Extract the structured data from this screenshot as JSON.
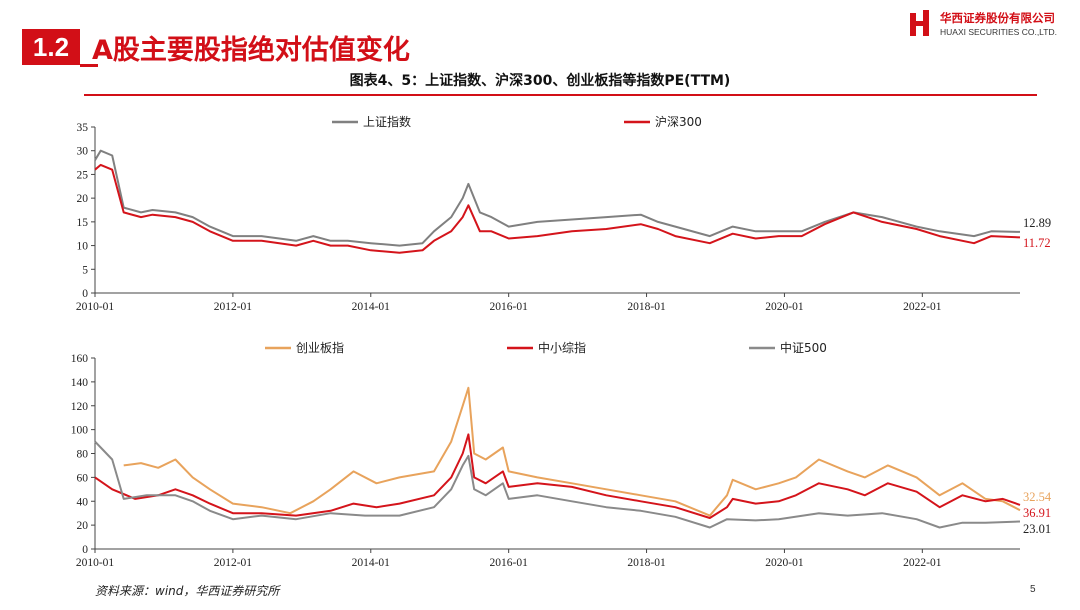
{
  "header": {
    "section_number": "1.2",
    "title": "A股主要股指绝对估值变化",
    "logo_cn": "华西证券股份有限公司",
    "logo_en": "HUAXI SECURITIES CO.,LTD."
  },
  "figure_title": "图表4、5：上证指数、沪深300、创业板指等指数PE(TTM)",
  "source": "资料来源：wind，华西证券研究所",
  "page_number": "5",
  "chart_data": [
    {
      "type": "line",
      "x_ticks": [
        "2010-01",
        "2012-01",
        "2014-01",
        "2016-01",
        "2018-01",
        "2020-01",
        "2022-01"
      ],
      "y_ticks": [
        0,
        5,
        10,
        15,
        20,
        25,
        30,
        35
      ],
      "xlim": [
        "2010-01",
        "2023-06"
      ],
      "ylim": [
        0,
        35
      ],
      "legend_position": "top",
      "series": [
        {
          "name": "上证指数",
          "color": "#808080",
          "end_label": "12.89",
          "points": [
            [
              "2010-01",
              28
            ],
            [
              "2010-02",
              30
            ],
            [
              "2010-04",
              29
            ],
            [
              "2010-06",
              18
            ],
            [
              "2010-09",
              17
            ],
            [
              "2010-11",
              17.5
            ],
            [
              "2011-03",
              17
            ],
            [
              "2011-06",
              16
            ],
            [
              "2011-09",
              14
            ],
            [
              "2012-01",
              12
            ],
            [
              "2012-06",
              12
            ],
            [
              "2012-12",
              11
            ],
            [
              "2013-03",
              12
            ],
            [
              "2013-06",
              11
            ],
            [
              "2013-09",
              11
            ],
            [
              "2014-01",
              10.5
            ],
            [
              "2014-06",
              10
            ],
            [
              "2014-10",
              10.5
            ],
            [
              "2014-12",
              13
            ],
            [
              "2015-03",
              16
            ],
            [
              "2015-05",
              20
            ],
            [
              "2015-06",
              23
            ],
            [
              "2015-08",
              17
            ],
            [
              "2015-10",
              16
            ],
            [
              "2016-01",
              14
            ],
            [
              "2016-06",
              15
            ],
            [
              "2016-12",
              15.5
            ],
            [
              "2017-06",
              16
            ],
            [
              "2017-12",
              16.5
            ],
            [
              "2018-03",
              15
            ],
            [
              "2018-06",
              14
            ],
            [
              "2018-12",
              12
            ],
            [
              "2019-04",
              14
            ],
            [
              "2019-08",
              13
            ],
            [
              "2019-12",
              13
            ],
            [
              "2020-04",
              13
            ],
            [
              "2020-08",
              15
            ],
            [
              "2021-01",
              17
            ],
            [
              "2021-06",
              16
            ],
            [
              "2021-12",
              14
            ],
            [
              "2022-04",
              13
            ],
            [
              "2022-10",
              12
            ],
            [
              "2023-01",
              13
            ],
            [
              "2023-06",
              12.89
            ]
          ]
        },
        {
          "name": "沪深300",
          "color": "#d4141b",
          "end_label": "11.72",
          "points": [
            [
              "2010-01",
              26
            ],
            [
              "2010-02",
              27
            ],
            [
              "2010-04",
              26
            ],
            [
              "2010-06",
              17
            ],
            [
              "2010-09",
              16
            ],
            [
              "2010-11",
              16.5
            ],
            [
              "2011-03",
              16
            ],
            [
              "2011-06",
              15
            ],
            [
              "2011-09",
              13
            ],
            [
              "2012-01",
              11
            ],
            [
              "2012-06",
              11
            ],
            [
              "2012-12",
              10
            ],
            [
              "2013-03",
              11
            ],
            [
              "2013-06",
              10
            ],
            [
              "2013-09",
              10
            ],
            [
              "2014-01",
              9
            ],
            [
              "2014-06",
              8.5
            ],
            [
              "2014-10",
              9
            ],
            [
              "2014-12",
              11
            ],
            [
              "2015-03",
              13
            ],
            [
              "2015-05",
              16
            ],
            [
              "2015-06",
              18.5
            ],
            [
              "2015-08",
              13
            ],
            [
              "2015-10",
              13
            ],
            [
              "2016-01",
              11.5
            ],
            [
              "2016-06",
              12
            ],
            [
              "2016-12",
              13
            ],
            [
              "2017-06",
              13.5
            ],
            [
              "2017-12",
              14.5
            ],
            [
              "2018-03",
              13.5
            ],
            [
              "2018-06",
              12
            ],
            [
              "2018-12",
              10.5
            ],
            [
              "2019-04",
              12.5
            ],
            [
              "2019-08",
              11.5
            ],
            [
              "2019-12",
              12
            ],
            [
              "2020-04",
              12
            ],
            [
              "2020-08",
              14.5
            ],
            [
              "2021-01",
              17
            ],
            [
              "2021-06",
              15
            ],
            [
              "2021-12",
              13.5
            ],
            [
              "2022-04",
              12
            ],
            [
              "2022-10",
              10.5
            ],
            [
              "2023-01",
              12
            ],
            [
              "2023-06",
              11.72
            ]
          ]
        }
      ]
    },
    {
      "type": "line",
      "x_ticks": [
        "2010-01",
        "2012-01",
        "2014-01",
        "2016-01",
        "2018-01",
        "2020-01",
        "2022-01"
      ],
      "y_ticks": [
        0,
        20,
        40,
        60,
        80,
        100,
        120,
        140,
        160
      ],
      "xlim": [
        "2010-01",
        "2023-06"
      ],
      "ylim": [
        0,
        160
      ],
      "legend_position": "top",
      "series": [
        {
          "name": "创业板指",
          "color": "#e8a35c",
          "end_label": "32.54",
          "points": [
            [
              "2010-06",
              70
            ],
            [
              "2010-09",
              72
            ],
            [
              "2010-12",
              68
            ],
            [
              "2011-03",
              75
            ],
            [
              "2011-06",
              60
            ],
            [
              "2011-09",
              50
            ],
            [
              "2012-01",
              38
            ],
            [
              "2012-06",
              35
            ],
            [
              "2012-11",
              30
            ],
            [
              "2013-03",
              40
            ],
            [
              "2013-06",
              50
            ],
            [
              "2013-10",
              65
            ],
            [
              "2014-02",
              55
            ],
            [
              "2014-06",
              60
            ],
            [
              "2014-12",
              65
            ],
            [
              "2015-03",
              90
            ],
            [
              "2015-05",
              120
            ],
            [
              "2015-06",
              135
            ],
            [
              "2015-07",
              80
            ],
            [
              "2015-09",
              75
            ],
            [
              "2015-12",
              85
            ],
            [
              "2016-01",
              65
            ],
            [
              "2016-06",
              60
            ],
            [
              "2016-12",
              55
            ],
            [
              "2017-06",
              50
            ],
            [
              "2017-12",
              45
            ],
            [
              "2018-06",
              40
            ],
            [
              "2018-12",
              28
            ],
            [
              "2019-03",
              45
            ],
            [
              "2019-04",
              58
            ],
            [
              "2019-08",
              50
            ],
            [
              "2019-12",
              55
            ],
            [
              "2020-03",
              60
            ],
            [
              "2020-07",
              75
            ],
            [
              "2020-12",
              65
            ],
            [
              "2021-03",
              60
            ],
            [
              "2021-07",
              70
            ],
            [
              "2021-12",
              60
            ],
            [
              "2022-04",
              45
            ],
            [
              "2022-08",
              55
            ],
            [
              "2022-12",
              42
            ],
            [
              "2023-03",
              40
            ],
            [
              "2023-06",
              32.54
            ]
          ]
        },
        {
          "name": "中小综指",
          "color": "#d4141b",
          "end_label": "36.91",
          "points": [
            [
              "2010-01",
              60
            ],
            [
              "2010-04",
              50
            ],
            [
              "2010-08",
              42
            ],
            [
              "2010-12",
              45
            ],
            [
              "2011-03",
              50
            ],
            [
              "2011-06",
              45
            ],
            [
              "2011-09",
              38
            ],
            [
              "2012-01",
              30
            ],
            [
              "2012-06",
              30
            ],
            [
              "2012-12",
              28
            ],
            [
              "2013-06",
              32
            ],
            [
              "2013-10",
              38
            ],
            [
              "2014-02",
              35
            ],
            [
              "2014-06",
              38
            ],
            [
              "2014-12",
              45
            ],
            [
              "2015-03",
              60
            ],
            [
              "2015-05",
              80
            ],
            [
              "2015-06",
              96
            ],
            [
              "2015-07",
              60
            ],
            [
              "2015-09",
              55
            ],
            [
              "2015-12",
              65
            ],
            [
              "2016-01",
              52
            ],
            [
              "2016-06",
              55
            ],
            [
              "2016-12",
              52
            ],
            [
              "2017-06",
              45
            ],
            [
              "2017-12",
              40
            ],
            [
              "2018-06",
              35
            ],
            [
              "2018-12",
              26
            ],
            [
              "2019-03",
              35
            ],
            [
              "2019-04",
              42
            ],
            [
              "2019-08",
              38
            ],
            [
              "2019-12",
              40
            ],
            [
              "2020-03",
              45
            ],
            [
              "2020-07",
              55
            ],
            [
              "2020-12",
              50
            ],
            [
              "2021-03",
              45
            ],
            [
              "2021-07",
              55
            ],
            [
              "2021-12",
              48
            ],
            [
              "2022-04",
              35
            ],
            [
              "2022-08",
              45
            ],
            [
              "2022-12",
              40
            ],
            [
              "2023-03",
              42
            ],
            [
              "2023-06",
              36.91
            ]
          ]
        },
        {
          "name": "中证500",
          "color": "#8a8a8a",
          "end_label": "23.01",
          "points": [
            [
              "2010-01",
              90
            ],
            [
              "2010-02",
              85
            ],
            [
              "2010-04",
              75
            ],
            [
              "2010-06",
              42
            ],
            [
              "2010-10",
              45
            ],
            [
              "2011-03",
              45
            ],
            [
              "2011-06",
              40
            ],
            [
              "2011-09",
              32
            ],
            [
              "2012-01",
              25
            ],
            [
              "2012-06",
              28
            ],
            [
              "2012-12",
              25
            ],
            [
              "2013-06",
              30
            ],
            [
              "2013-12",
              28
            ],
            [
              "2014-06",
              28
            ],
            [
              "2014-12",
              35
            ],
            [
              "2015-03",
              50
            ],
            [
              "2015-05",
              70
            ],
            [
              "2015-06",
              78
            ],
            [
              "2015-07",
              50
            ],
            [
              "2015-09",
              45
            ],
            [
              "2015-12",
              55
            ],
            [
              "2016-01",
              42
            ],
            [
              "2016-06",
              45
            ],
            [
              "2016-12",
              40
            ],
            [
              "2017-06",
              35
            ],
            [
              "2017-12",
              32
            ],
            [
              "2018-06",
              27
            ],
            [
              "2018-12",
              18
            ],
            [
              "2019-03",
              25
            ],
            [
              "2019-08",
              24
            ],
            [
              "2019-12",
              25
            ],
            [
              "2020-07",
              30
            ],
            [
              "2020-12",
              28
            ],
            [
              "2021-06",
              30
            ],
            [
              "2021-12",
              25
            ],
            [
              "2022-04",
              18
            ],
            [
              "2022-08",
              22
            ],
            [
              "2022-12",
              22
            ],
            [
              "2023-06",
              23.01
            ]
          ]
        }
      ]
    }
  ]
}
